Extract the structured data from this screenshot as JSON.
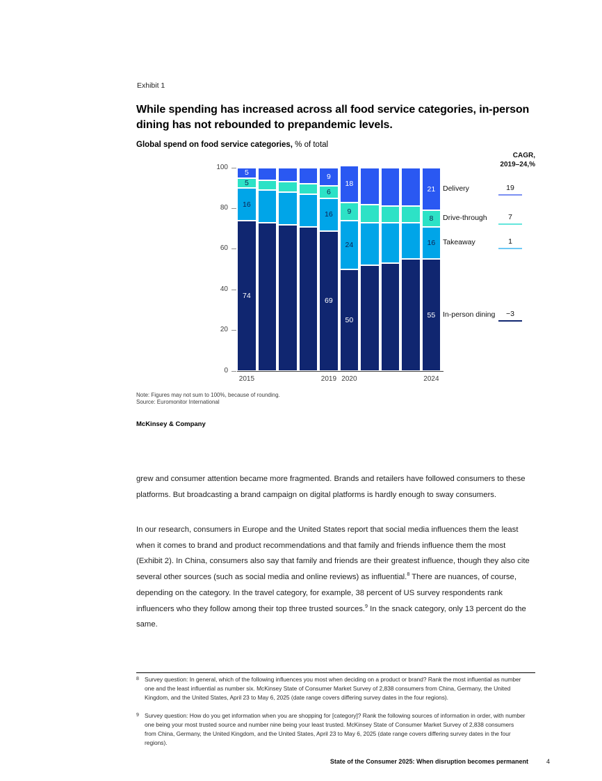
{
  "page": {
    "exhibit_label": "Exhibit 1",
    "heading_line1": "While spending has increased across all food service categories, in-person",
    "heading_line2": "dining has not rebounded to prepandemic levels.",
    "chart_title_bold": "Global spend on food service categories,",
    "chart_title_regular": " % of total",
    "note": "Note: Figures may not sum to 100%, because of rounding.",
    "source": "Source: Euromonitor International",
    "brand": "McKinsey & Company",
    "footer_title": "State of the Consumer 2025: When disruption becomes permanent",
    "footer_page": "4"
  },
  "body": {
    "paragraph1": "grew and consumer attention became more fragmented. Brands and retailers have followed consumers to these platforms. But broadcasting a brand campaign on digital platforms is hardly enough to sway consumers.",
    "p2_part1": "In our research, consumers in Europe and the United States report that social media influences them the least when it comes to brand and product recommendations and that family and friends influence them the most (Exhibit 2). In China, consumers also say that family and friends are their greatest influence, though they also cite several other sources (such as social media and online reviews) as influential.",
    "p2_sup1": "8",
    "p2_part2": " There are nuances, of course, depending on the category. In the travel category, for example, 38 percent of US survey respondents rank influencers who they follow among their top three trusted sources.",
    "p2_sup2": "9",
    "p2_part3": " In the snack category, only 13 percent do the same."
  },
  "footnotes": [
    {
      "number": "8",
      "text": "Survey question: In general, which of the following influences you most when deciding on a product or brand? Rank the most influential as number one and the least influential as number six. McKinsey State of Consumer Market Survey of 2,838 consumers from China, Germany, the United Kingdom, and the United States, April 23 to May 6, 2025 (date range covers differing survey dates in the four regions)."
    },
    {
      "number": "9",
      "text": "Survey question: How do you get information when you are shopping for [category]? Rank the following sources of information in order, with number one being your most trusted source and number nine being your least trusted. McKinsey State of Consumer Market Survey of 2,838 consumers from China, Germany, the United Kingdom, and the United States, April 23 to May 6, 2025 (date range covers differing survey dates in the four regions)."
    }
  ],
  "chart_data": {
    "type": "bar",
    "stacked": true,
    "title": "Global spend on food service categories, % of total",
    "x": [
      2015,
      2016,
      2017,
      2018,
      2019,
      2020,
      2021,
      2022,
      2023,
      2024
    ],
    "series": [
      {
        "name": "In-person dining",
        "values": [
          74,
          73,
          72,
          71,
          69,
          50,
          52,
          53,
          55,
          55
        ],
        "color": "#102670",
        "label_color": "#ffffff",
        "cagr": "−3",
        "cagr_underline": "#102670"
      },
      {
        "name": "Takeaway",
        "values": [
          16,
          16,
          16,
          16,
          16,
          24,
          21,
          20,
          18,
          16
        ],
        "color": "#00a5e8",
        "label_color": "#0d2250",
        "cagr": "1",
        "cagr_underline": "#6cc8f5"
      },
      {
        "name": "Drive-through",
        "values": [
          5,
          5,
          5,
          5,
          6,
          9,
          9,
          8,
          8,
          8
        ],
        "color": "#2de2c6",
        "label_color": "#0d2250",
        "cagr": "7",
        "cagr_underline": "#63e6dc"
      },
      {
        "name": "Delivery",
        "values": [
          5,
          6,
          7,
          8,
          9,
          18,
          18,
          19,
          19,
          21
        ],
        "color": "#2a58f2",
        "label_color": "#ffffff",
        "cagr": "19",
        "cagr_underline": "#7b8ff2"
      }
    ],
    "value_labels_shown_for_years": [
      2015,
      2019,
      2020,
      2024
    ],
    "x_tick_years": [
      2015,
      2019,
      2020,
      2024
    ],
    "y_ticks": [
      0,
      20,
      40,
      60,
      80,
      100
    ],
    "ylim": [
      0,
      100
    ],
    "legend_position": "right",
    "legend_order_top_down": [
      "Delivery",
      "Drive-through",
      "Takeaway",
      "In-person dining"
    ],
    "cagr_header_line1": "CAGR,",
    "cagr_header_line2": "2019–24,%"
  }
}
